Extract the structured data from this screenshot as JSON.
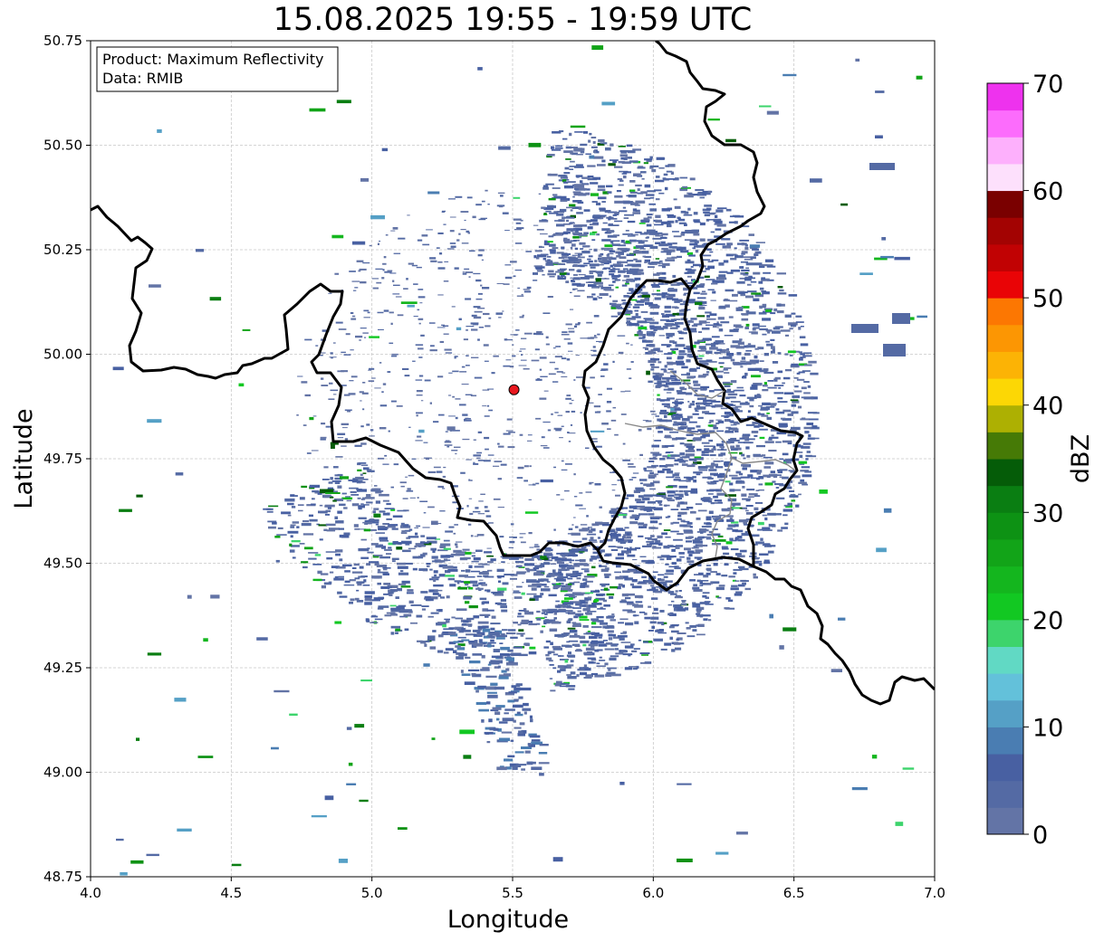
{
  "title": "15.08.2025 19:55 - 19:59 UTC",
  "info_box": {
    "product_line": "Product: Maximum Reflectivity",
    "data_line": "Data: RMIB"
  },
  "axes": {
    "xlabel": "Longitude",
    "ylabel": "Latitude",
    "xlim": [
      4.0,
      7.0
    ],
    "ylim": [
      48.75,
      50.75
    ],
    "xticks": [
      "4.0",
      "4.5",
      "5.0",
      "5.5",
      "6.0",
      "6.5",
      "7.0"
    ],
    "yticks": [
      "48.75",
      "49.00",
      "49.25",
      "49.50",
      "49.75",
      "50.00",
      "50.25",
      "50.50",
      "50.75"
    ],
    "grid": true
  },
  "radar_site": {
    "lon": 5.505,
    "lat": 49.915,
    "color": "#e8171e"
  },
  "colorbar": {
    "label": "dBZ",
    "min": 0,
    "max": 70,
    "ticks": [
      "0",
      "10",
      "20",
      "30",
      "40",
      "50",
      "60",
      "70"
    ],
    "colors": [
      "#6374a6",
      "#546aa4",
      "#4860a2",
      "#4a7db2",
      "#55a0c6",
      "#63c1da",
      "#61d9c4",
      "#3dd46c",
      "#12c822",
      "#14b61e",
      "#12a418",
      "#0d9214",
      "#0a7e12",
      "#055c08",
      "#467a06",
      "#adb002",
      "#fcd705",
      "#fcb305",
      "#fc9603",
      "#fc7702",
      "#e90406",
      "#c10203",
      "#a30302",
      "#7a0000",
      "#fde0fc",
      "#fdb0fc",
      "#fc6cfc",
      "#ee32ee"
    ]
  },
  "legend_info": {
    "placement": "top-left"
  }
}
